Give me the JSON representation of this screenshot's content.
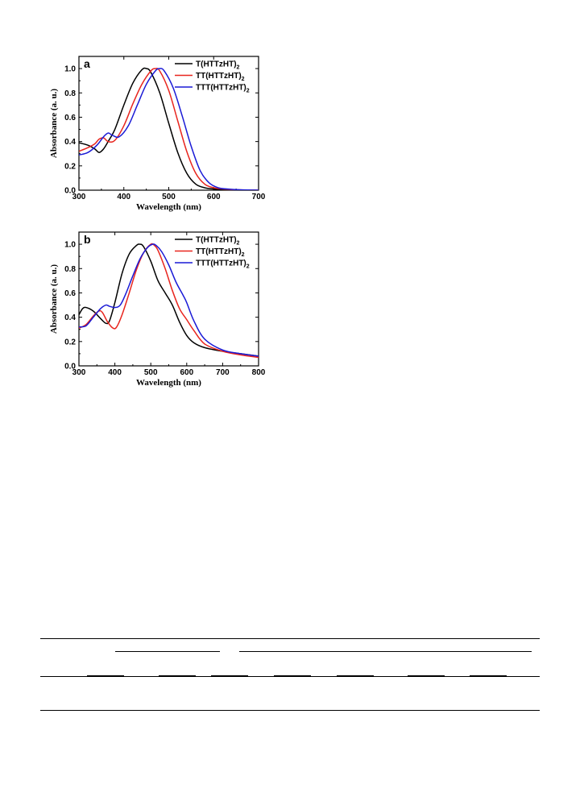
{
  "colors": {
    "s1": "#000000",
    "s2": "#e8251e",
    "s3": "#1a1ad6"
  },
  "legend_subscript": "2",
  "chart_data": [
    {
      "type": "line",
      "panel": "a",
      "xlabel": "Wavelength (nm)",
      "ylabel": "Absorbance (a. u.)",
      "xlim": [
        300,
        700
      ],
      "ylim": [
        0,
        1.1
      ],
      "xticks": [
        300,
        400,
        500,
        600,
        700
      ],
      "yticks": [
        0.0,
        0.2,
        0.4,
        0.6,
        0.8,
        1.0
      ],
      "grid": false,
      "legend_position": "top-right",
      "series": [
        {
          "name": "T(HTTzHT)",
          "color": "#000000",
          "x": [
            300,
            320,
            335,
            345,
            355,
            365,
            380,
            400,
            420,
            440,
            450,
            460,
            480,
            500,
            520,
            540,
            560,
            580,
            600,
            620,
            650,
            700
          ],
          "y": [
            0.39,
            0.37,
            0.34,
            0.31,
            0.34,
            0.4,
            0.5,
            0.7,
            0.88,
            0.99,
            1.0,
            0.97,
            0.8,
            0.55,
            0.31,
            0.14,
            0.05,
            0.02,
            0.01,
            0.005,
            0.002,
            0.0
          ]
        },
        {
          "name": "TT(HTTzHT)",
          "color": "#e8251e",
          "x": [
            300,
            320,
            335,
            345,
            355,
            365,
            380,
            400,
            420,
            440,
            460,
            470,
            480,
            500,
            520,
            540,
            560,
            580,
            600,
            620,
            650,
            700
          ],
          "y": [
            0.32,
            0.35,
            0.38,
            0.42,
            0.43,
            0.4,
            0.41,
            0.53,
            0.71,
            0.87,
            0.98,
            1.0,
            0.98,
            0.82,
            0.57,
            0.32,
            0.14,
            0.05,
            0.02,
            0.01,
            0.003,
            0.0
          ]
        },
        {
          "name": "TTT(HTTzHT)",
          "color": "#1a1ad6",
          "x": [
            300,
            320,
            340,
            355,
            365,
            375,
            390,
            410,
            430,
            450,
            470,
            480,
            490,
            510,
            530,
            550,
            570,
            590,
            610,
            630,
            660,
            700
          ],
          "y": [
            0.29,
            0.31,
            0.37,
            0.44,
            0.47,
            0.45,
            0.44,
            0.53,
            0.7,
            0.87,
            0.98,
            1.0,
            0.98,
            0.84,
            0.61,
            0.36,
            0.16,
            0.06,
            0.02,
            0.01,
            0.003,
            0.0
          ]
        }
      ]
    },
    {
      "type": "line",
      "panel": "b",
      "xlabel": "Wavelength (nm)",
      "ylabel": "Absorbance (a. u.)",
      "xlim": [
        300,
        800
      ],
      "ylim": [
        0,
        1.1
      ],
      "xticks": [
        300,
        400,
        500,
        600,
        700,
        800
      ],
      "yticks": [
        0.0,
        0.2,
        0.4,
        0.6,
        0.8,
        1.0
      ],
      "grid": false,
      "legend_position": "top-right",
      "series": [
        {
          "name": "T(HTTzHT)",
          "color": "#000000",
          "x": [
            300,
            310,
            320,
            340,
            360,
            375,
            385,
            400,
            420,
            440,
            460,
            470,
            480,
            500,
            520,
            540,
            560,
            580,
            600,
            620,
            650,
            700,
            750,
            800
          ],
          "y": [
            0.42,
            0.47,
            0.48,
            0.45,
            0.39,
            0.35,
            0.37,
            0.52,
            0.76,
            0.92,
            0.99,
            1.0,
            0.98,
            0.86,
            0.7,
            0.6,
            0.5,
            0.36,
            0.25,
            0.19,
            0.15,
            0.12,
            0.1,
            0.08
          ]
        },
        {
          "name": "TT(HTTzHT)",
          "color": "#e8251e",
          "x": [
            300,
            320,
            340,
            355,
            365,
            380,
            395,
            405,
            420,
            440,
            460,
            480,
            500,
            510,
            520,
            540,
            560,
            580,
            600,
            620,
            650,
            700,
            750,
            800
          ],
          "y": [
            0.31,
            0.34,
            0.41,
            0.45,
            0.44,
            0.36,
            0.31,
            0.32,
            0.42,
            0.6,
            0.79,
            0.93,
            1.0,
            0.99,
            0.95,
            0.8,
            0.62,
            0.47,
            0.38,
            0.29,
            0.18,
            0.12,
            0.09,
            0.07
          ]
        },
        {
          "name": "TTT(HTTzHT)",
          "color": "#1a1ad6",
          "x": [
            300,
            320,
            340,
            360,
            375,
            385,
            400,
            415,
            430,
            450,
            470,
            490,
            505,
            515,
            530,
            550,
            570,
            590,
            600,
            620,
            650,
            700,
            750,
            800
          ],
          "y": [
            0.32,
            0.33,
            0.4,
            0.47,
            0.5,
            0.49,
            0.48,
            0.5,
            0.59,
            0.74,
            0.88,
            0.97,
            1.0,
            0.99,
            0.94,
            0.83,
            0.69,
            0.58,
            0.52,
            0.37,
            0.22,
            0.13,
            0.1,
            0.08
          ]
        }
      ]
    }
  ]
}
